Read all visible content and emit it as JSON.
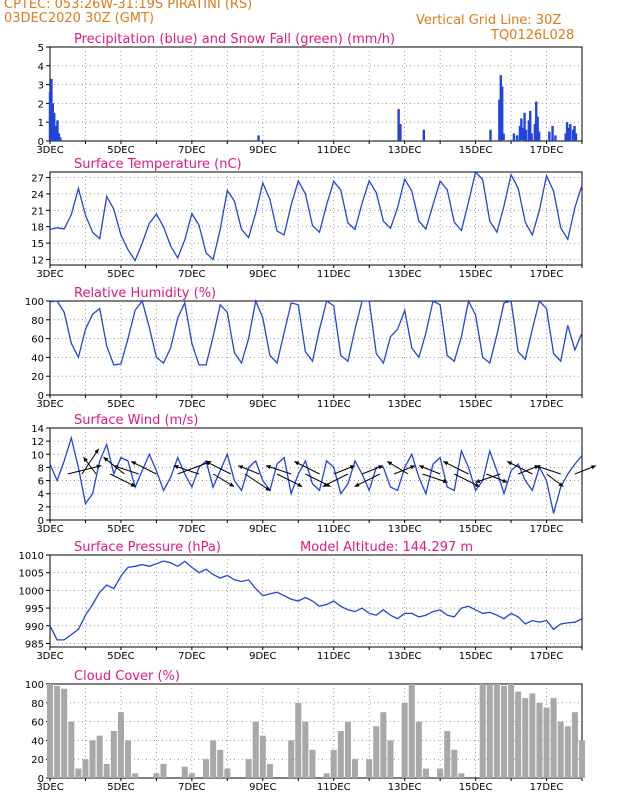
{
  "header": {
    "line1": "CPTEC:   053:26W-31:19S   PIRATINI (RS)",
    "line2": "03DEC2020 30Z (GMT)",
    "right1": "Vertical Grid Line: 30Z",
    "right2": "TQ0126L028",
    "altitude": "Model Altitude: 144.297 m"
  },
  "colors": {
    "header": "#e07a1a",
    "panel_title": "#e0197d",
    "line": "#2244dd",
    "snow": "#22aa22",
    "cloud": "#a8a8a8",
    "arrow": "#000000"
  },
  "chart_data": [
    {
      "id": "precip",
      "type": "bar",
      "title": "Precipitation (blue) and Snow Fall (green) (mm/h)",
      "ylim": [
        0,
        5
      ],
      "yticks": [
        0,
        1,
        2,
        3,
        4,
        5
      ],
      "x_range_days": [
        3.0,
        18.0
      ],
      "xtick_labels": [
        "3DEC",
        "5DEC",
        "7DEC",
        "9DEC",
        "11DEC",
        "13DEC",
        "15DEC",
        "17DEC"
      ],
      "series": [
        {
          "name": "Precipitation",
          "color": "blue",
          "points": [
            [
              3.0,
              2.6
            ],
            [
              3.04,
              3.3
            ],
            [
              3.08,
              2.0
            ],
            [
              3.12,
              1.5
            ],
            [
              3.17,
              0.8
            ],
            [
              3.21,
              1.1
            ],
            [
              3.25,
              0.4
            ],
            [
              3.29,
              0.2
            ],
            [
              8.88,
              0.3
            ],
            [
              12.83,
              1.7
            ],
            [
              12.88,
              0.9
            ],
            [
              13.54,
              0.6
            ],
            [
              15.42,
              0.6
            ],
            [
              15.67,
              2.2
            ],
            [
              15.71,
              3.5
            ],
            [
              15.75,
              2.9
            ],
            [
              15.79,
              0.4
            ],
            [
              16.08,
              0.4
            ],
            [
              16.17,
              0.3
            ],
            [
              16.25,
              0.8
            ],
            [
              16.29,
              1.2
            ],
            [
              16.33,
              0.7
            ],
            [
              16.38,
              1.5
            ],
            [
              16.42,
              0.6
            ],
            [
              16.5,
              1.1
            ],
            [
              16.54,
              1.6
            ],
            [
              16.58,
              0.4
            ],
            [
              16.67,
              0.9
            ],
            [
              16.71,
              2.1
            ],
            [
              16.75,
              1.3
            ],
            [
              16.79,
              0.5
            ],
            [
              17.08,
              0.5
            ],
            [
              17.17,
              0.8
            ],
            [
              17.25,
              0.3
            ],
            [
              17.54,
              0.4
            ],
            [
              17.58,
              1.0
            ],
            [
              17.63,
              0.7
            ],
            [
              17.67,
              0.9
            ],
            [
              17.75,
              0.6
            ],
            [
              17.79,
              0.8
            ],
            [
              17.83,
              0.4
            ]
          ]
        },
        {
          "name": "Snow Fall",
          "color": "green",
          "points": [
            [
              9.6,
              0.05
            ],
            [
              15.8,
              0.05
            ],
            [
              16.3,
              0.05
            ]
          ]
        }
      ]
    },
    {
      "id": "temp",
      "type": "line",
      "title": "Surface Temperature (nC)",
      "ylim": [
        11,
        28
      ],
      "yticks": [
        12,
        15,
        18,
        21,
        24,
        27
      ],
      "x_range_days": [
        3.0,
        18.0
      ],
      "xtick_labels": [
        "3DEC",
        "5DEC",
        "7DEC",
        "9DEC",
        "11DEC",
        "13DEC",
        "15DEC",
        "17DEC"
      ],
      "x": [
        3.0,
        3.2,
        3.4,
        3.6,
        3.8,
        4.0,
        4.2,
        4.4,
        4.6,
        4.8,
        5.0,
        5.2,
        5.4,
        5.6,
        5.8,
        6.0,
        6.2,
        6.4,
        6.6,
        6.8,
        7.0,
        7.2,
        7.4,
        7.6,
        7.8,
        8.0,
        8.2,
        8.4,
        8.6,
        8.8,
        9.0,
        9.2,
        9.4,
        9.6,
        9.8,
        10.0,
        10.2,
        10.4,
        10.6,
        10.8,
        11.0,
        11.2,
        11.4,
        11.6,
        11.8,
        12.0,
        12.2,
        12.4,
        12.6,
        12.8,
        13.0,
        13.2,
        13.4,
        13.6,
        13.8,
        14.0,
        14.2,
        14.4,
        14.6,
        14.8,
        15.0,
        15.2,
        15.4,
        15.6,
        15.8,
        16.0,
        16.2,
        16.4,
        16.6,
        16.8,
        17.0,
        17.2,
        17.4,
        17.6,
        17.8,
        18.0
      ],
      "values": [
        17.5,
        17.8,
        17.6,
        20.2,
        25.0,
        20.1,
        17.0,
        15.8,
        23.5,
        21.2,
        16.5,
        13.8,
        11.8,
        15.0,
        18.6,
        20.3,
        18.0,
        14.5,
        12.3,
        15.6,
        20.4,
        18.3,
        13.2,
        12.0,
        17.5,
        24.6,
        22.7,
        17.5,
        16.0,
        20.5,
        26.0,
        23.0,
        17.2,
        16.5,
        22.0,
        26.4,
        24.0,
        18.2,
        17.0,
        22.0,
        26.3,
        24.7,
        18.7,
        17.5,
        22.3,
        26.4,
        24.2,
        19.0,
        17.7,
        21.5,
        26.7,
        24.5,
        19.0,
        17.6,
        22.0,
        26.3,
        24.8,
        18.8,
        17.3,
        22.5,
        28.0,
        26.6,
        19.0,
        17.0,
        21.8,
        27.5,
        25.0,
        18.8,
        16.5,
        21.0,
        27.3,
        24.5,
        17.8,
        15.7,
        21.5,
        25.6
      ]
    },
    {
      "id": "rh",
      "type": "line",
      "title": "Relative Humidity (%)",
      "ylim": [
        0,
        100
      ],
      "yticks": [
        0,
        20,
        40,
        60,
        80,
        100
      ],
      "x_range_days": [
        3.0,
        18.0
      ],
      "xtick_labels": [
        "3DEC",
        "5DEC",
        "7DEC",
        "9DEC",
        "11DEC",
        "13DEC",
        "15DEC",
        "17DEC"
      ],
      "x": [
        3.0,
        3.2,
        3.4,
        3.6,
        3.8,
        4.0,
        4.2,
        4.4,
        4.6,
        4.8,
        5.0,
        5.2,
        5.4,
        5.6,
        5.8,
        6.0,
        6.2,
        6.4,
        6.6,
        6.8,
        7.0,
        7.2,
        7.4,
        7.6,
        7.8,
        8.0,
        8.2,
        8.4,
        8.6,
        8.8,
        9.0,
        9.2,
        9.4,
        9.6,
        9.8,
        10.0,
        10.2,
        10.4,
        10.6,
        10.8,
        11.0,
        11.2,
        11.4,
        11.6,
        11.8,
        12.0,
        12.2,
        12.4,
        12.6,
        12.8,
        13.0,
        13.2,
        13.4,
        13.6,
        13.8,
        14.0,
        14.2,
        14.4,
        14.6,
        14.8,
        15.0,
        15.2,
        15.4,
        15.6,
        15.8,
        16.0,
        16.2,
        16.4,
        16.6,
        16.8,
        17.0,
        17.2,
        17.4,
        17.6,
        17.8,
        18.0
      ],
      "values": [
        99,
        100,
        88,
        55,
        40,
        70,
        86,
        92,
        52,
        32,
        33,
        60,
        90,
        100,
        72,
        40,
        34,
        50,
        82,
        98,
        55,
        32,
        32,
        62,
        96,
        88,
        45,
        34,
        60,
        100,
        82,
        42,
        34,
        66,
        98,
        96,
        46,
        36,
        70,
        100,
        95,
        42,
        36,
        70,
        100,
        100,
        44,
        34,
        62,
        70,
        90,
        50,
        40,
        66,
        100,
        96,
        42,
        36,
        62,
        100,
        85,
        40,
        34,
        64,
        98,
        100,
        46,
        38,
        70,
        100,
        92,
        44,
        36,
        74,
        48,
        66
      ]
    },
    {
      "id": "wind",
      "type": "line",
      "title": "Surface Wind (m/s)",
      "ylim": [
        0,
        14
      ],
      "yticks": [
        0,
        2,
        4,
        6,
        8,
        10,
        12,
        14
      ],
      "x_range_days": [
        3.0,
        18.0
      ],
      "xtick_labels": [
        "3DEC",
        "5DEC",
        "7DEC",
        "9DEC",
        "11DEC",
        "13DEC",
        "15DEC",
        "17DEC"
      ],
      "x": [
        3.0,
        3.2,
        3.4,
        3.6,
        3.8,
        4.0,
        4.2,
        4.4,
        4.6,
        4.8,
        5.0,
        5.2,
        5.4,
        5.6,
        5.8,
        6.0,
        6.2,
        6.4,
        6.6,
        6.8,
        7.0,
        7.2,
        7.4,
        7.6,
        7.8,
        8.0,
        8.2,
        8.4,
        8.6,
        8.8,
        9.0,
        9.2,
        9.4,
        9.6,
        9.8,
        10.0,
        10.2,
        10.4,
        10.6,
        10.8,
        11.0,
        11.2,
        11.4,
        11.6,
        11.8,
        12.0,
        12.2,
        12.4,
        12.6,
        12.8,
        13.0,
        13.2,
        13.4,
        13.6,
        13.8,
        14.0,
        14.2,
        14.4,
        14.6,
        14.8,
        15.0,
        15.2,
        15.4,
        15.6,
        15.8,
        16.0,
        16.2,
        16.4,
        16.6,
        16.8,
        17.0,
        17.2,
        17.4,
        17.6,
        17.8,
        18.0
      ],
      "values": [
        8.5,
        6.0,
        9.0,
        12.5,
        8.0,
        2.5,
        4.0,
        9.0,
        11.5,
        7.0,
        9.5,
        9.0,
        5.0,
        7.5,
        10.0,
        7.5,
        4.5,
        6.5,
        9.5,
        7.0,
        5.0,
        8.0,
        9.0,
        5.0,
        7.5,
        10.0,
        6.0,
        4.5,
        8.0,
        9.0,
        6.0,
        4.5,
        8.5,
        9.5,
        4.0,
        7.0,
        9.0,
        5.5,
        4.5,
        9.0,
        8.0,
        4.0,
        5.5,
        9.0,
        7.0,
        4.5,
        8.0,
        8.0,
        5.0,
        4.5,
        8.0,
        10.0,
        6.5,
        4.0,
        8.5,
        9.5,
        5.0,
        4.5,
        10.5,
        8.0,
        4.5,
        6.0,
        10.5,
        7.5,
        4.0,
        7.5,
        8.5,
        6.0,
        4.5,
        8.0,
        6.0,
        1.0,
        5.0,
        7.0,
        8.5,
        9.8
      ]
    },
    {
      "id": "pressure",
      "type": "line",
      "title": "Surface Pressure (hPa)",
      "ylim": [
        984,
        1010
      ],
      "yticks": [
        985,
        990,
        995,
        1000,
        1005,
        1010
      ],
      "x_range_days": [
        3.0,
        18.0
      ],
      "xtick_labels": [
        "3DEC",
        "5DEC",
        "7DEC",
        "9DEC",
        "11DEC",
        "13DEC",
        "15DEC",
        "17DEC"
      ],
      "x": [
        3.0,
        3.2,
        3.4,
        3.6,
        3.8,
        4.0,
        4.2,
        4.4,
        4.6,
        4.8,
        5.0,
        5.2,
        5.4,
        5.6,
        5.8,
        6.0,
        6.2,
        6.4,
        6.6,
        6.8,
        7.0,
        7.2,
        7.4,
        7.6,
        7.8,
        8.0,
        8.2,
        8.4,
        8.6,
        8.8,
        9.0,
        9.2,
        9.4,
        9.6,
        9.8,
        10.0,
        10.2,
        10.4,
        10.6,
        10.8,
        11.0,
        11.2,
        11.4,
        11.6,
        11.8,
        12.0,
        12.2,
        12.4,
        12.6,
        12.8,
        13.0,
        13.2,
        13.4,
        13.6,
        13.8,
        14.0,
        14.2,
        14.4,
        14.6,
        14.8,
        15.0,
        15.2,
        15.4,
        15.6,
        15.8,
        16.0,
        16.2,
        16.4,
        16.6,
        16.8,
        17.0,
        17.2,
        17.4,
        17.6,
        17.8,
        18.0
      ],
      "values": [
        990,
        986,
        986,
        987.5,
        989,
        993,
        996,
        999.5,
        1001.5,
        1000.5,
        1004,
        1006.5,
        1006.8,
        1007.3,
        1006.8,
        1007.5,
        1008.3,
        1007.8,
        1006.8,
        1008.2,
        1006.5,
        1005,
        1006,
        1004.5,
        1003.5,
        1004.2,
        1003,
        1002.5,
        1003,
        1000.5,
        998.5,
        999,
        999.5,
        998.5,
        997.5,
        997,
        998,
        997,
        995.5,
        996,
        997,
        995.5,
        994.5,
        994,
        995,
        993.5,
        993,
        994.5,
        993,
        992,
        993.5,
        993.5,
        992.5,
        993,
        994,
        994.5,
        993,
        992.5,
        995,
        995.5,
        994.5,
        993.5,
        993.8,
        993,
        992,
        993.5,
        992.5,
        990.5,
        991.5,
        991,
        991.5,
        989,
        990.5,
        990.8,
        991,
        992
      ]
    },
    {
      "id": "cloud",
      "type": "bar",
      "title": "Cloud Cover (%)",
      "ylim": [
        0,
        100
      ],
      "yticks": [
        0,
        20,
        40,
        60,
        80,
        100
      ],
      "x_range_days": [
        3.0,
        18.0
      ],
      "xtick_labels": [
        "3DEC",
        "5DEC",
        "7DEC",
        "9DEC",
        "11DEC",
        "13DEC",
        "15DEC",
        "17DEC"
      ],
      "x": [
        3.0,
        3.2,
        3.4,
        3.6,
        3.8,
        4.0,
        4.2,
        4.4,
        4.6,
        4.8,
        5.0,
        5.2,
        5.4,
        5.6,
        5.8,
        6.0,
        6.2,
        6.4,
        6.6,
        6.8,
        7.0,
        7.2,
        7.4,
        7.6,
        7.8,
        8.0,
        8.2,
        8.4,
        8.6,
        8.8,
        9.0,
        9.2,
        9.4,
        9.6,
        9.8,
        10.0,
        10.2,
        10.4,
        10.6,
        10.8,
        11.0,
        11.2,
        11.4,
        11.6,
        11.8,
        12.0,
        12.2,
        12.4,
        12.6,
        12.8,
        13.0,
        13.2,
        13.4,
        13.6,
        13.8,
        14.0,
        14.2,
        14.4,
        14.6,
        14.8,
        15.0,
        15.2,
        15.4,
        15.6,
        15.8,
        16.0,
        16.2,
        16.4,
        16.6,
        16.8,
        17.0,
        17.2,
        17.4,
        17.6,
        17.8,
        18.0
      ],
      "values": [
        100,
        98,
        95,
        60,
        10,
        20,
        40,
        45,
        15,
        50,
        70,
        40,
        5,
        0,
        0,
        5,
        15,
        0,
        0,
        12,
        5,
        0,
        20,
        40,
        30,
        10,
        0,
        0,
        20,
        60,
        45,
        15,
        0,
        0,
        40,
        80,
        60,
        30,
        0,
        5,
        30,
        50,
        60,
        20,
        0,
        20,
        55,
        70,
        40,
        0,
        80,
        100,
        60,
        10,
        0,
        10,
        50,
        30,
        5,
        0,
        0,
        100,
        100,
        100,
        98,
        100,
        92,
        85,
        90,
        80,
        75,
        85,
        60,
        55,
        70,
        40
      ]
    }
  ],
  "wind_vectors": {
    "x": [
      3.5,
      3.9,
      4.3,
      4.7,
      5.1,
      5.5,
      6.0,
      6.6,
      7.2,
      7.6,
      8.1,
      8.5,
      8.9,
      9.4,
      9.8,
      10.2,
      10.6,
      11.0,
      11.4,
      11.8,
      12.3,
      12.7,
      13.1,
      13.5,
      14.0,
      14.4,
      14.8,
      15.3,
      15.7,
      16.2,
      16.6,
      17.0,
      17.4,
      17.8
    ],
    "u": [
      8,
      4,
      -3,
      6,
      -5,
      -6,
      -6,
      8,
      -6,
      5,
      -6,
      6,
      -5,
      6,
      -6,
      6,
      -6,
      5,
      -6,
      5,
      -6,
      5,
      -5,
      6,
      -5,
      6,
      -6,
      5,
      -6,
      5,
      -6,
      4,
      -6,
      5
    ],
    "v": [
      2,
      6,
      4,
      -3,
      4,
      2,
      3,
      3,
      2,
      -3,
      3,
      -4,
      2,
      -3,
      2,
      -3,
      3,
      2,
      -3,
      2,
      -3,
      2,
      3,
      -2,
      2,
      -3,
      3,
      -2,
      -2,
      2,
      3,
      -3,
      2,
      2
    ]
  }
}
